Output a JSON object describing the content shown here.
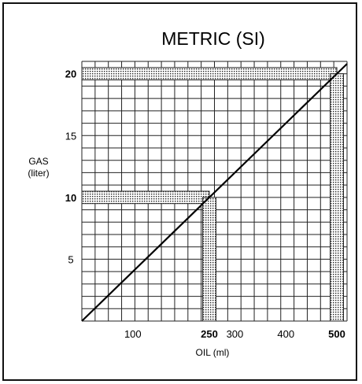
{
  "chart_data": {
    "type": "line",
    "title": "METRIC (SI)",
    "xlabel": "OIL (ml)",
    "ylabel_line1": "GAS",
    "ylabel_line2": "(liter)",
    "xlim": [
      0,
      520
    ],
    "ylim": [
      0,
      21
    ],
    "x_ticks": [
      {
        "value": 100,
        "label": "100",
        "bold": false
      },
      {
        "value": 250,
        "label": "250",
        "bold": true
      },
      {
        "value": 300,
        "label": "300",
        "bold": false
      },
      {
        "value": 400,
        "label": "400",
        "bold": false
      },
      {
        "value": 500,
        "label": "500",
        "bold": true
      }
    ],
    "y_ticks": [
      {
        "value": 5,
        "label": "5",
        "bold": false
      },
      {
        "value": 10,
        "label": "10",
        "bold": true
      },
      {
        "value": 15,
        "label": "15",
        "bold": false
      },
      {
        "value": 20,
        "label": "20",
        "bold": true
      }
    ],
    "series": [
      {
        "x": [
          0,
          520
        ],
        "y": [
          0,
          20.8
        ]
      }
    ],
    "highlights": [
      {
        "x": 250,
        "y": 10
      },
      {
        "x": 500,
        "y": 20
      }
    ],
    "grid": true,
    "grid_lines_x": 20,
    "grid_lines_y": 21
  }
}
